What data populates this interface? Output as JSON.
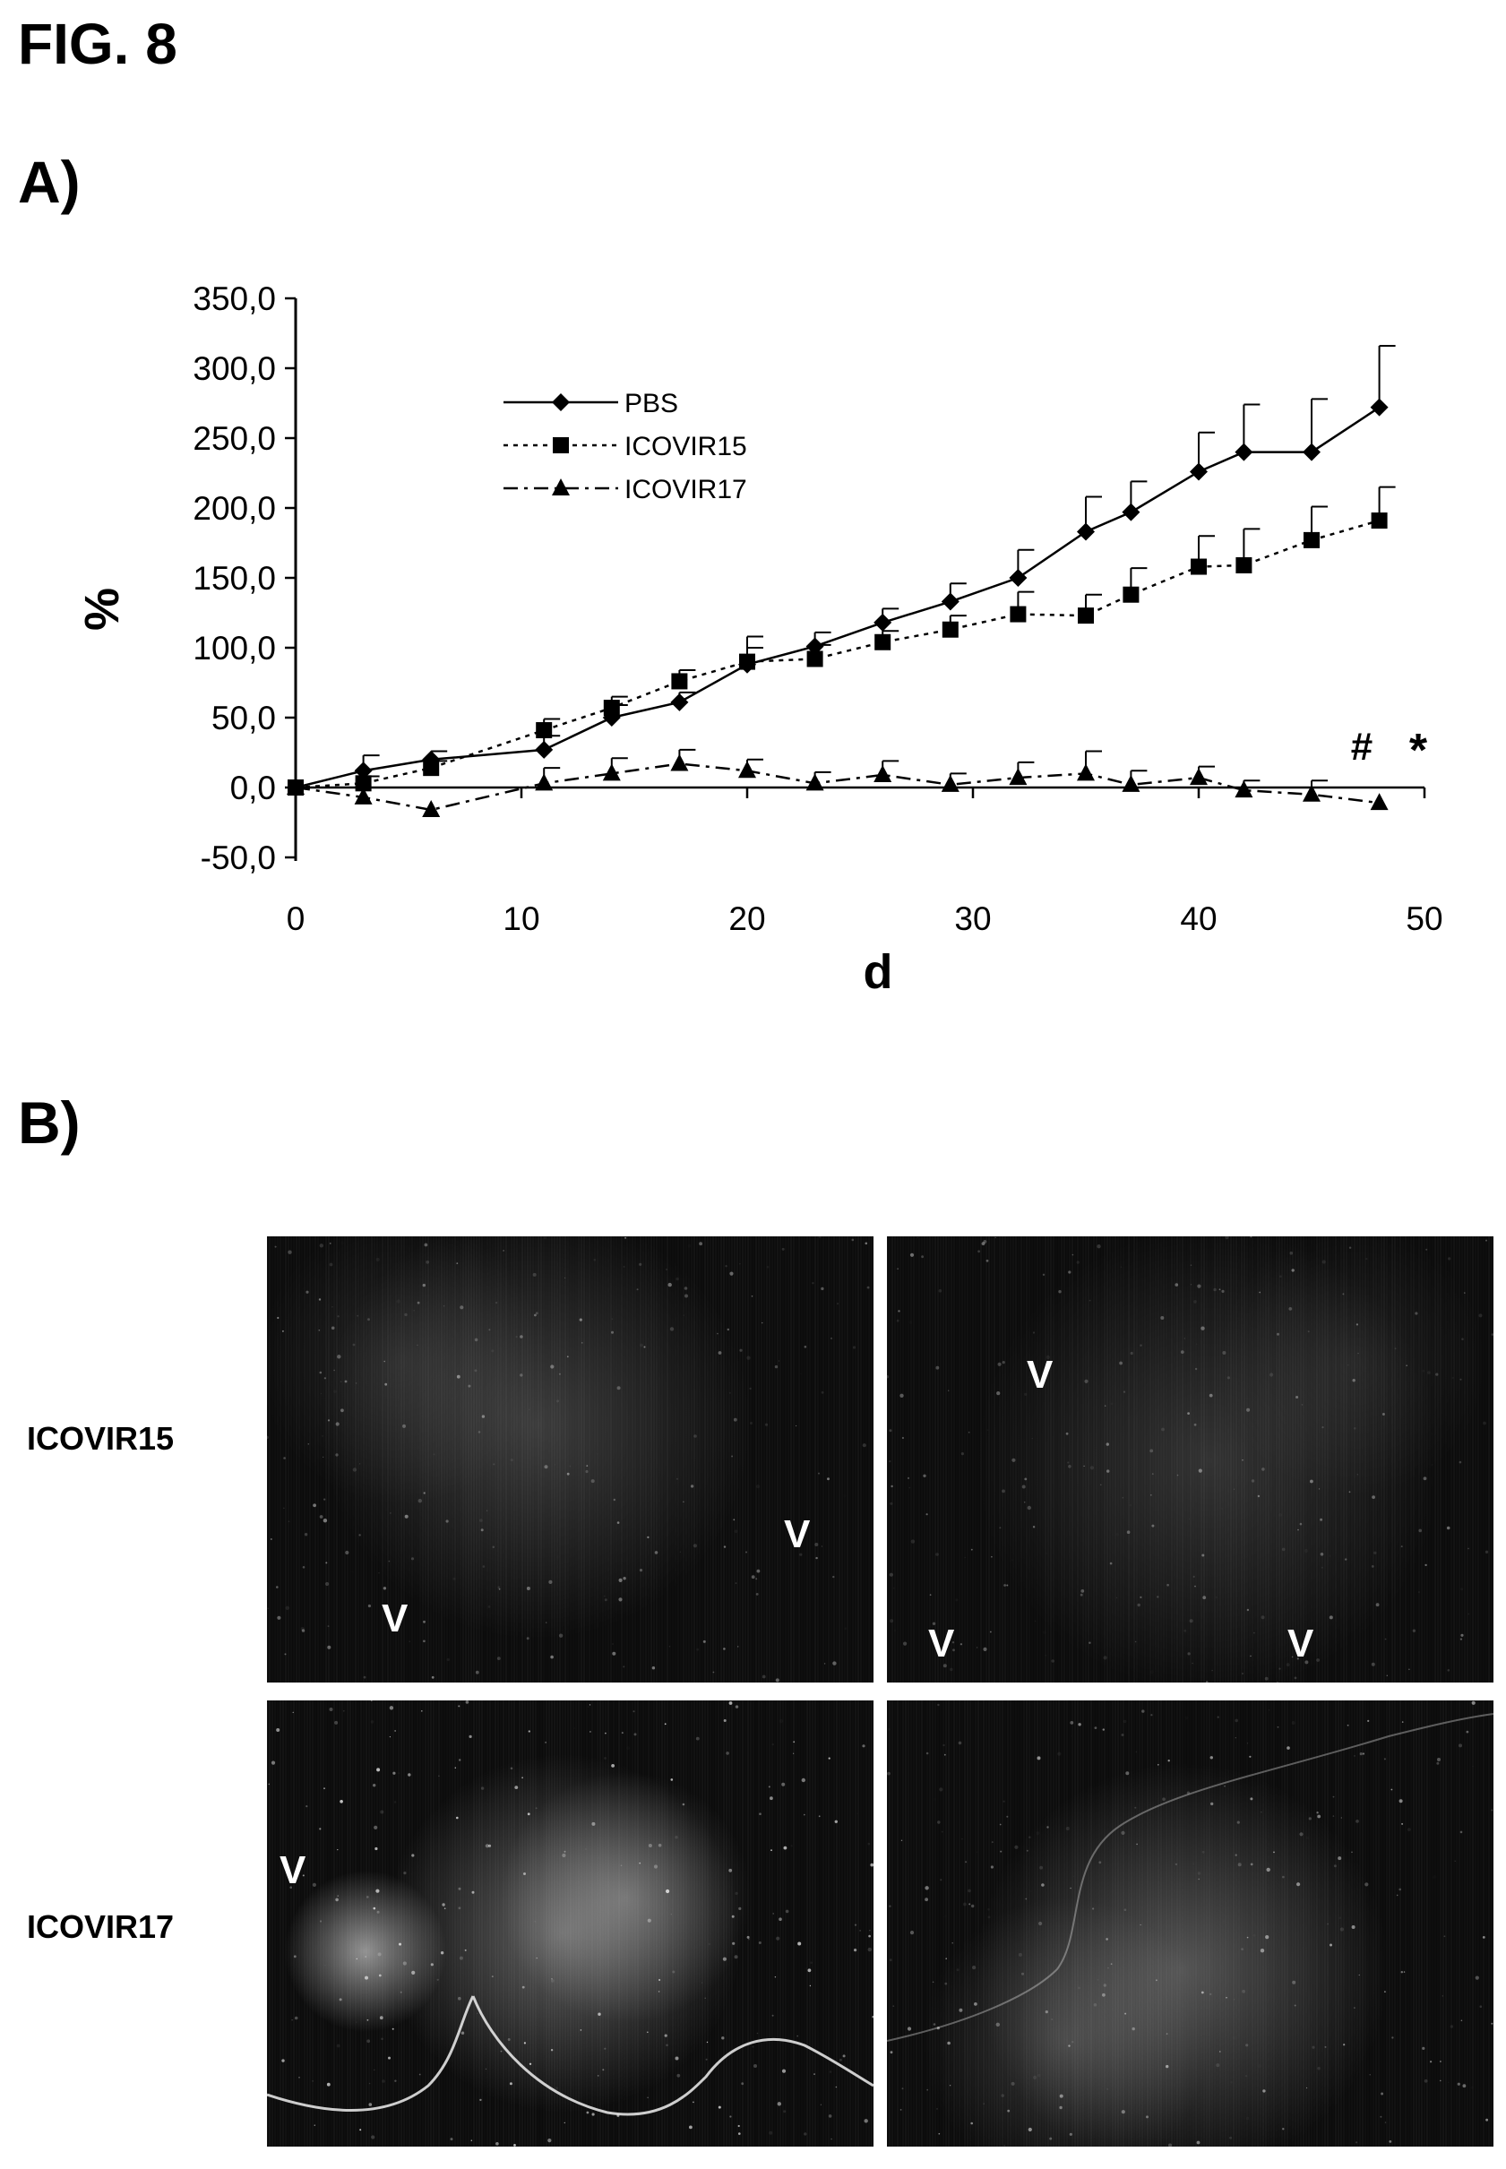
{
  "figure_title": "FIG. 8",
  "panel_a_label": "A)",
  "panel_b_label": "B)",
  "chart_data": {
    "type": "line",
    "xlabel": "d",
    "ylabel": "%",
    "xlim": [
      0,
      50
    ],
    "ylim": [
      -50,
      350
    ],
    "x_ticks": [
      "0",
      "10",
      "20",
      "30",
      "40",
      "50"
    ],
    "y_ticks": [
      "350,0",
      "300,0",
      "250,0",
      "200,0",
      "150,0",
      "100,0",
      "50,0",
      "0,0",
      "-50,0"
    ],
    "legend_position": "top-left",
    "annotations": [
      "#",
      "*"
    ],
    "series": [
      {
        "name": "PBS",
        "marker": "diamond",
        "line": "solid",
        "x": [
          0,
          3,
          6,
          11,
          14,
          17,
          20,
          23,
          26,
          29,
          32,
          35,
          37,
          40,
          42,
          45,
          48
        ],
        "y": [
          0,
          12,
          20,
          27,
          50,
          61,
          88,
          101,
          118,
          133,
          150,
          183,
          197,
          226,
          240,
          240,
          272
        ],
        "error": [
          0,
          11,
          6,
          10,
          9,
          7,
          20,
          10,
          10,
          13,
          20,
          25,
          22,
          28,
          34,
          38,
          44
        ]
      },
      {
        "name": "ICOVIR15",
        "marker": "square",
        "line": "dotted",
        "x": [
          0,
          3,
          6,
          11,
          14,
          17,
          20,
          23,
          26,
          29,
          32,
          35,
          37,
          40,
          42,
          45,
          48
        ],
        "y": [
          0,
          3,
          14,
          41,
          57,
          76,
          90,
          92,
          104,
          113,
          124,
          123,
          138,
          158,
          159,
          177,
          191
        ],
        "error": [
          0,
          5,
          5,
          8,
          8,
          8,
          10,
          10,
          8,
          10,
          16,
          15,
          19,
          22,
          26,
          24,
          24
        ]
      },
      {
        "name": "ICOVIR17",
        "marker": "triangle",
        "line": "dashdot",
        "x": [
          0,
          3,
          6,
          11,
          14,
          17,
          20,
          23,
          26,
          29,
          32,
          35,
          37,
          40,
          42,
          45,
          48
        ],
        "y": [
          0,
          -7,
          -16,
          3,
          10,
          17,
          12,
          3,
          9,
          2,
          7,
          10,
          2,
          7,
          -2,
          -5,
          -11
        ],
        "error": [
          0,
          0,
          0,
          11,
          11,
          10,
          8,
          8,
          10,
          8,
          11,
          16,
          10,
          8,
          7,
          10,
          0
        ]
      }
    ]
  },
  "panel_b": {
    "rows": [
      {
        "label": "ICOVIR15",
        "images": [
          {
            "marks": [
              "V",
              "V"
            ]
          },
          {
            "marks": [
              "V",
              "V",
              "V"
            ]
          }
        ]
      },
      {
        "label": "ICOVIR17",
        "images": [
          {
            "marks": [
              "V"
            ]
          },
          {
            "marks": []
          }
        ]
      }
    ]
  }
}
